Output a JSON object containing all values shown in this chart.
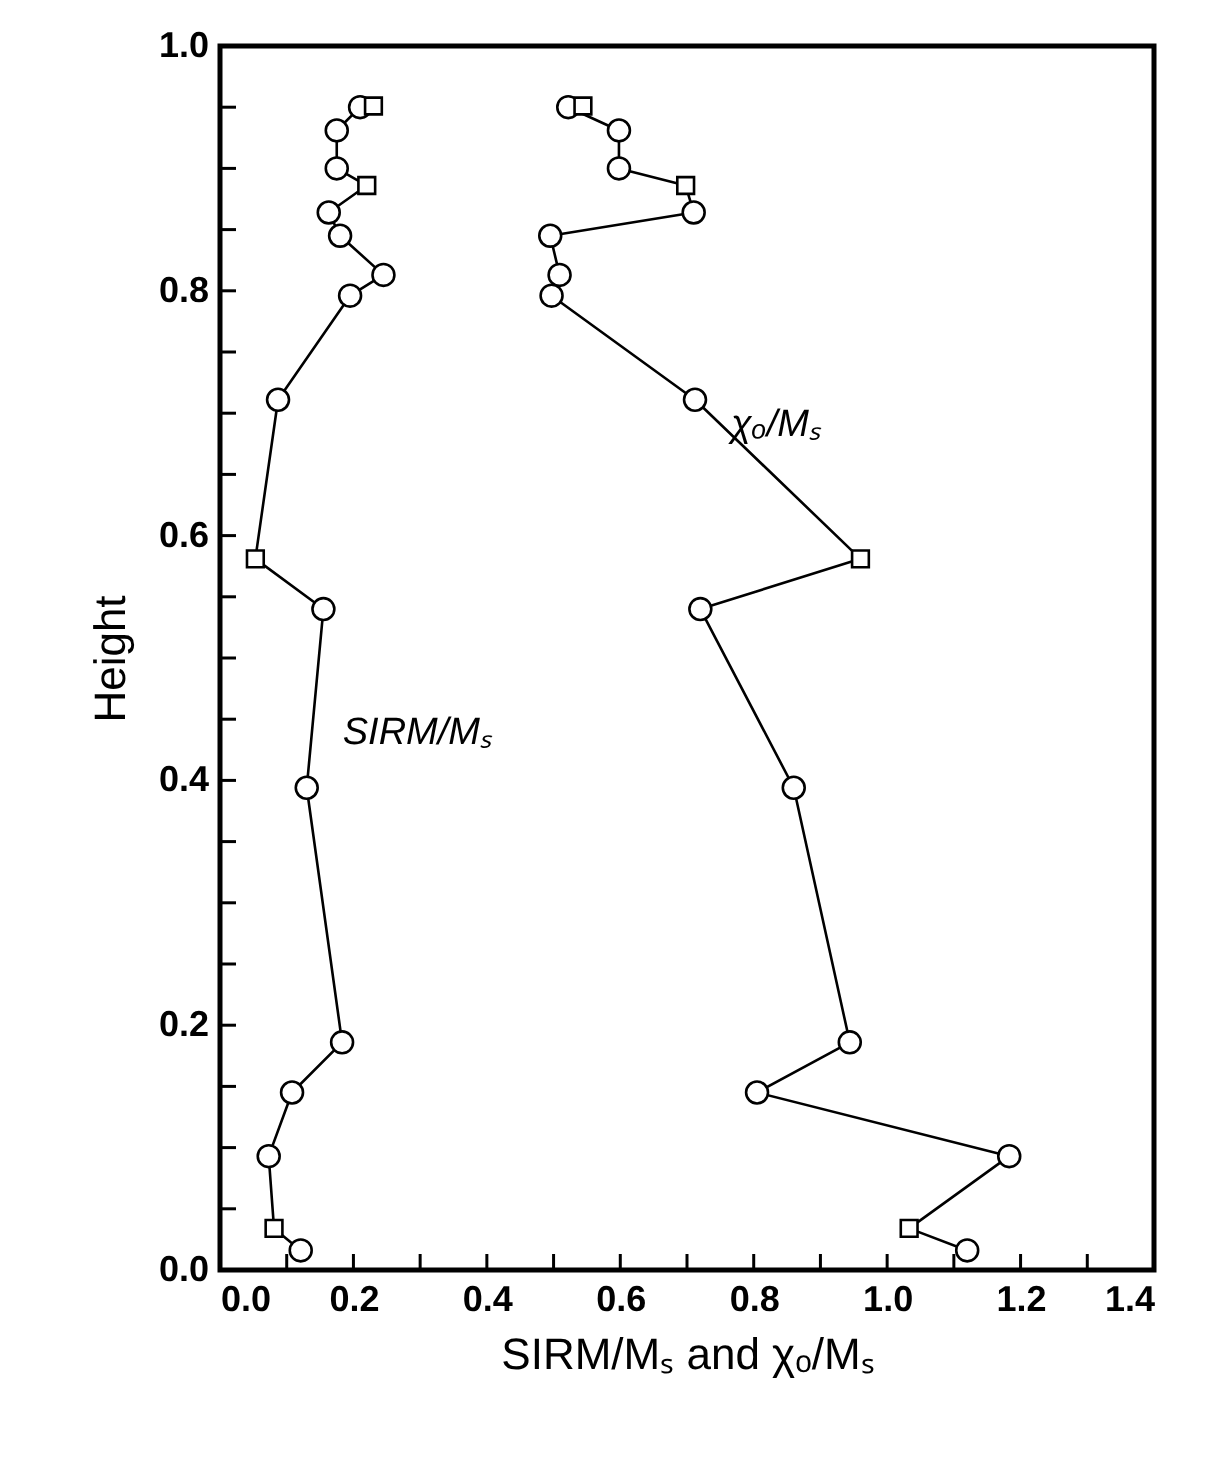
{
  "chart_data": {
    "type": "line",
    "xlabel": "SIRM/Mₛ and χₒ/Mₛ",
    "ylabel": "Height",
    "xlim": [
      0,
      1.4
    ],
    "ylim": [
      0,
      1.0
    ],
    "xticks": [
      {
        "value": 0,
        "label": "0.0"
      },
      {
        "value": 0.1,
        "label": null
      },
      0.2,
      {
        "value": 0.3,
        "label": null
      },
      0.4,
      {
        "value": 0.5,
        "label": null
      },
      0.6,
      {
        "value": 0.7,
        "label": null
      },
      0.8,
      {
        "value": 0.9,
        "label": null
      },
      {
        "value": 1,
        "label": "1.0"
      },
      {
        "value": 1.1,
        "label": null
      },
      1.2,
      {
        "value": 1.3,
        "label": null
      },
      1.4
    ],
    "yticks": [
      {
        "value": 0,
        "label": "0.0"
      },
      {
        "value": 0.05,
        "label": null
      },
      {
        "value": 0.1,
        "label": null
      },
      {
        "value": 0.15,
        "label": null
      },
      0.2,
      {
        "value": 0.25,
        "label": null
      },
      {
        "value": 0.3,
        "label": null
      },
      {
        "value": 0.35,
        "label": null
      },
      0.4,
      {
        "value": 0.45,
        "label": null
      },
      {
        "value": 0.5,
        "label": null
      },
      {
        "value": 0.55,
        "label": null
      },
      0.6,
      {
        "value": 0.65,
        "label": null
      },
      {
        "value": 0.7,
        "label": null
      },
      {
        "value": 0.75,
        "label": null
      },
      0.8,
      {
        "value": 0.85,
        "label": null
      },
      {
        "value": 0.9,
        "label": null
      },
      {
        "value": 0.95,
        "label": null
      },
      {
        "value": 1,
        "label": "1.0"
      }
    ],
    "grid": false,
    "series": [
      {
        "name": "SIRM/Mₛ",
        "marker": "none",
        "color": "#000000",
        "x": [
          0.23,
          0.21,
          0.175,
          0.175,
          0.22,
          0.163,
          0.18,
          0.245,
          0.195,
          0.087,
          0.053,
          0.155,
          0.13,
          0.183,
          0.108,
          0.073,
          0.081,
          0.121
        ],
        "values": [
          0.951,
          0.95,
          0.931,
          0.9,
          0.886,
          0.864,
          0.845,
          0.813,
          0.796,
          0.711,
          0.581,
          0.54,
          0.394,
          0.186,
          0.145,
          0.093,
          0.034,
          0.016
        ]
      },
      {
        "name": "χₒ/Mₛ",
        "marker": "none",
        "color": "#000000",
        "x": [
          0.544,
          0.522,
          0.598,
          0.598,
          0.698,
          0.71,
          0.495,
          0.509,
          0.497,
          0.712,
          0.96,
          0.72,
          0.86,
          0.944,
          0.805,
          1.183,
          1.033,
          1.12
        ],
        "values": [
          0.951,
          0.95,
          0.931,
          0.9,
          0.886,
          0.864,
          0.845,
          0.813,
          0.796,
          0.711,
          0.581,
          0.54,
          0.394,
          0.186,
          0.145,
          0.093,
          0.034,
          0.016
        ]
      },
      {
        "type": "scatter",
        "marker": "circle",
        "color": "#000000",
        "x": [
          0.21,
          0.175,
          0.175,
          0.163,
          0.18,
          0.245,
          0.195,
          0.087,
          0.155,
          0.13,
          0.183,
          0.108,
          0.073,
          0.121,
          0.522,
          0.598,
          0.598,
          0.71,
          0.495,
          0.509,
          0.497,
          0.712,
          0.72,
          0.86,
          0.944,
          0.805,
          1.183,
          1.12
        ],
        "values": [
          0.95,
          0.931,
          0.9,
          0.864,
          0.845,
          0.813,
          0.796,
          0.711,
          0.54,
          0.394,
          0.186,
          0.145,
          0.093,
          0.016,
          0.95,
          0.931,
          0.9,
          0.864,
          0.845,
          0.813,
          0.796,
          0.711,
          0.54,
          0.394,
          0.186,
          0.145,
          0.093,
          0.016
        ]
      },
      {
        "type": "scatter",
        "marker": "square",
        "color": "#000000",
        "x": [
          0.23,
          0.22,
          0.053,
          0.081,
          0.544,
          0.698,
          0.96,
          1.033
        ],
        "values": [
          0.951,
          0.886,
          0.581,
          0.034,
          0.951,
          0.886,
          0.581,
          0.034
        ]
      }
    ]
  }
}
